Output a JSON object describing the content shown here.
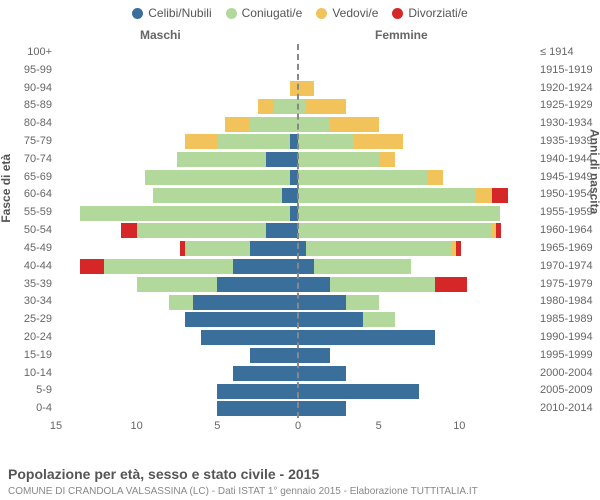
{
  "legend": [
    {
      "label": "Celibi/Nubili",
      "color": "#3a6f9c"
    },
    {
      "label": "Coniugati/e",
      "color": "#b3d89c"
    },
    {
      "label": "Vedovi/e",
      "color": "#f3c35b"
    },
    {
      "label": "Divorziati/e",
      "color": "#d62728"
    }
  ],
  "titles": {
    "male": "Maschi",
    "female": "Femmine",
    "y_left": "Fasce di età",
    "y_right": "Anni di nascita",
    "caption": "Popolazione per età, sesso e stato civile - 2015",
    "subcaption": "COMUNE DI CRANDOLA VALSASSINA (LC) - Dati ISTAT 1° gennaio 2015 - Elaborazione TUTTITALIA.IT"
  },
  "colors": {
    "celibi": "#3a6f9c",
    "coniugati": "#b3d89c",
    "vedovi": "#f3c35b",
    "divorziati": "#d62728",
    "grid": "#888",
    "text": "#666",
    "bg": "#ffffff"
  },
  "axis": {
    "max": 15,
    "ticks": [
      15,
      10,
      5,
      0,
      5,
      10
    ],
    "tick_positions": [
      0,
      0.1667,
      0.3333,
      0.5,
      0.6667,
      0.8333
    ]
  },
  "age_groups": [
    "100+",
    "95-99",
    "90-94",
    "85-89",
    "80-84",
    "75-79",
    "70-74",
    "65-69",
    "60-64",
    "55-59",
    "50-54",
    "45-49",
    "40-44",
    "35-39",
    "30-34",
    "25-29",
    "20-24",
    "15-19",
    "10-14",
    "5-9",
    "0-4"
  ],
  "birth_years": [
    "≤ 1914",
    "1915-1919",
    "1920-1924",
    "1925-1929",
    "1930-1934",
    "1935-1939",
    "1940-1944",
    "1945-1949",
    "1950-1954",
    "1955-1959",
    "1960-1964",
    "1965-1969",
    "1970-1974",
    "1975-1979",
    "1980-1984",
    "1985-1989",
    "1990-1994",
    "1995-1999",
    "2000-2004",
    "2005-2009",
    "2010-2014"
  ],
  "rows": [
    {
      "m": {
        "cel": 0,
        "con": 0,
        "ved": 0,
        "div": 0
      },
      "f": {
        "cel": 0,
        "con": 0,
        "ved": 0,
        "div": 0
      }
    },
    {
      "m": {
        "cel": 0,
        "con": 0,
        "ved": 0,
        "div": 0
      },
      "f": {
        "cel": 0,
        "con": 0,
        "ved": 0,
        "div": 0
      }
    },
    {
      "m": {
        "cel": 0,
        "con": 0,
        "ved": 0.5,
        "div": 0
      },
      "f": {
        "cel": 0,
        "con": 0,
        "ved": 1,
        "div": 0
      }
    },
    {
      "m": {
        "cel": 0,
        "con": 1.5,
        "ved": 1,
        "div": 0
      },
      "f": {
        "cel": 0,
        "con": 0.5,
        "ved": 2.5,
        "div": 0
      }
    },
    {
      "m": {
        "cel": 0,
        "con": 3,
        "ved": 1.5,
        "div": 0
      },
      "f": {
        "cel": 0,
        "con": 2,
        "ved": 3,
        "div": 0
      }
    },
    {
      "m": {
        "cel": 0.5,
        "con": 4.5,
        "ved": 2,
        "div": 0
      },
      "f": {
        "cel": 0,
        "con": 3.5,
        "ved": 3,
        "div": 0
      }
    },
    {
      "m": {
        "cel": 2,
        "con": 5.5,
        "ved": 0,
        "div": 0
      },
      "f": {
        "cel": 0,
        "con": 5,
        "ved": 1,
        "div": 0
      }
    },
    {
      "m": {
        "cel": 0.5,
        "con": 9,
        "ved": 0,
        "div": 0
      },
      "f": {
        "cel": 0,
        "con": 8,
        "ved": 1,
        "div": 0
      }
    },
    {
      "m": {
        "cel": 1,
        "con": 8,
        "ved": 0,
        "div": 0
      },
      "f": {
        "cel": 0,
        "con": 11,
        "ved": 1,
        "div": 1
      }
    },
    {
      "m": {
        "cel": 0.5,
        "con": 13,
        "ved": 0,
        "div": 0
      },
      "f": {
        "cel": 0,
        "con": 12.5,
        "ved": 0,
        "div": 0
      }
    },
    {
      "m": {
        "cel": 2,
        "con": 8,
        "ved": 0,
        "div": 1
      },
      "f": {
        "cel": 0,
        "con": 12,
        "ved": 0.3,
        "div": 0.3
      }
    },
    {
      "m": {
        "cel": 3,
        "con": 4,
        "ved": 0,
        "div": 0.3
      },
      "f": {
        "cel": 0.5,
        "con": 9,
        "ved": 0.3,
        "div": 0.3
      }
    },
    {
      "m": {
        "cel": 4,
        "con": 8,
        "ved": 0,
        "div": 1.5
      },
      "f": {
        "cel": 1,
        "con": 6,
        "ved": 0,
        "div": 0
      }
    },
    {
      "m": {
        "cel": 5,
        "con": 5,
        "ved": 0,
        "div": 0
      },
      "f": {
        "cel": 2,
        "con": 6.5,
        "ved": 0,
        "div": 2
      }
    },
    {
      "m": {
        "cel": 6.5,
        "con": 1.5,
        "ved": 0,
        "div": 0
      },
      "f": {
        "cel": 3,
        "con": 2,
        "ved": 0,
        "div": 0
      }
    },
    {
      "m": {
        "cel": 7,
        "con": 0,
        "ved": 0,
        "div": 0
      },
      "f": {
        "cel": 4,
        "con": 2,
        "ved": 0,
        "div": 0
      }
    },
    {
      "m": {
        "cel": 6,
        "con": 0,
        "ved": 0,
        "div": 0
      },
      "f": {
        "cel": 8.5,
        "con": 0,
        "ved": 0,
        "div": 0
      }
    },
    {
      "m": {
        "cel": 3,
        "con": 0,
        "ved": 0,
        "div": 0
      },
      "f": {
        "cel": 2,
        "con": 0,
        "ved": 0,
        "div": 0
      }
    },
    {
      "m": {
        "cel": 4,
        "con": 0,
        "ved": 0,
        "div": 0
      },
      "f": {
        "cel": 3,
        "con": 0,
        "ved": 0,
        "div": 0
      }
    },
    {
      "m": {
        "cel": 5,
        "con": 0,
        "ved": 0,
        "div": 0
      },
      "f": {
        "cel": 7.5,
        "con": 0,
        "ved": 0,
        "div": 0
      }
    },
    {
      "m": {
        "cel": 5,
        "con": 0,
        "ved": 0,
        "div": 0
      },
      "f": {
        "cel": 3,
        "con": 0,
        "ved": 0,
        "div": 0
      }
    }
  ]
}
